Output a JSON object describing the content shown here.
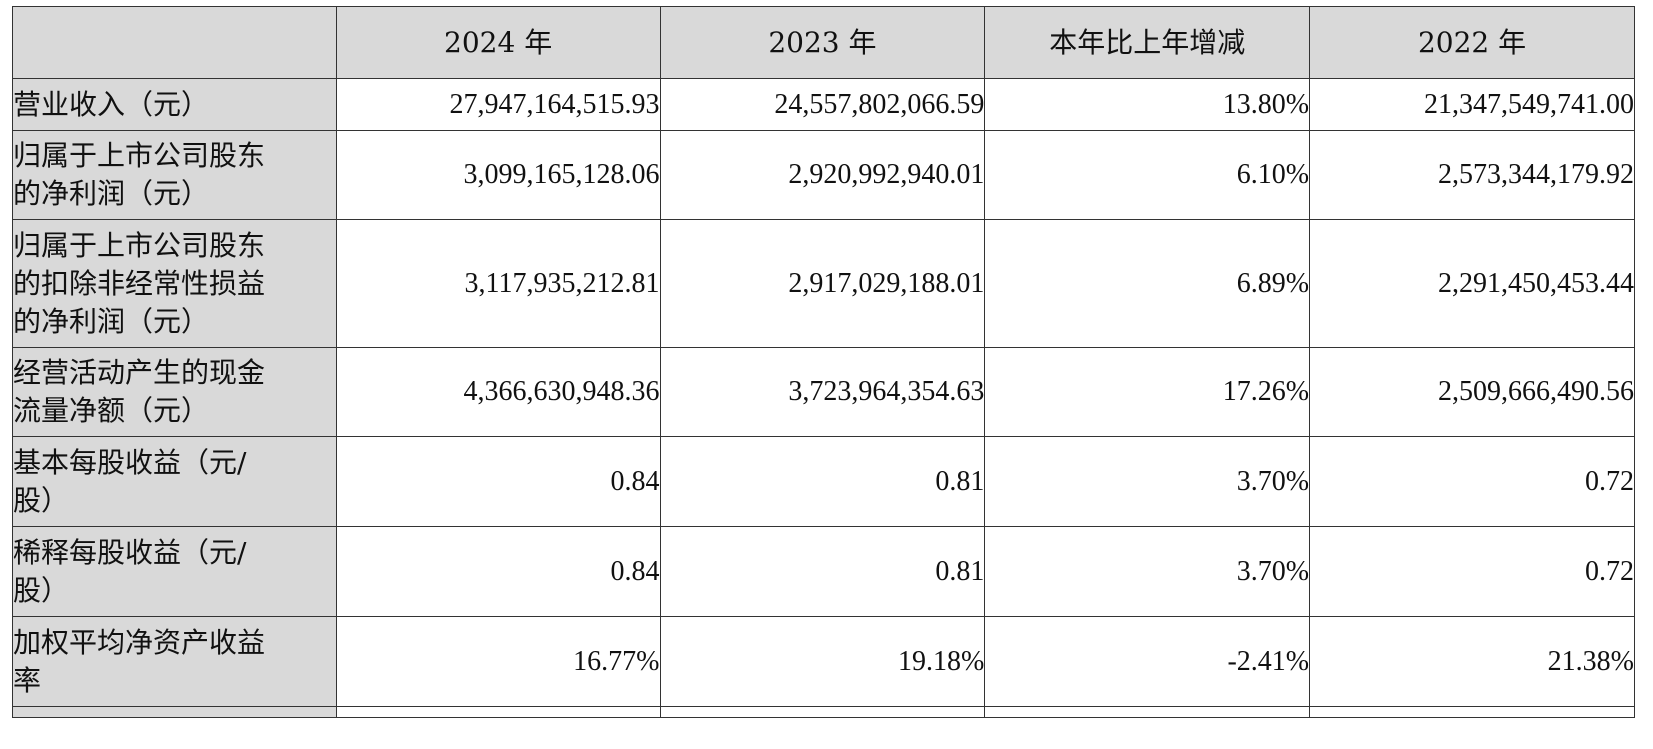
{
  "table": {
    "headers": [
      "",
      "2024 年",
      "2023 年",
      "本年比上年增减",
      "2022 年"
    ],
    "rows": [
      {
        "label": "营业收入（元）",
        "label_lines": [
          "营业收入（元）"
        ],
        "values": [
          "27,947,164,515.93",
          "24,557,802,066.59",
          "13.80%",
          "21,347,549,741.00"
        ]
      },
      {
        "label": "归属于上市公司股东的净利润（元）",
        "label_lines": [
          "归属于上市公司股东",
          "的净利润（元）"
        ],
        "values": [
          "3,099,165,128.06",
          "2,920,992,940.01",
          "6.10%",
          "2,573,344,179.92"
        ]
      },
      {
        "label": "归属于上市公司股东的扣除非经常性损益的净利润（元）",
        "label_lines": [
          "归属于上市公司股东",
          "的扣除非经常性损益",
          "的净利润（元）"
        ],
        "values": [
          "3,117,935,212.81",
          "2,917,029,188.01",
          "6.89%",
          "2,291,450,453.44"
        ]
      },
      {
        "label": "经营活动产生的现金流量净额（元）",
        "label_lines": [
          "经营活动产生的现金",
          "流量净额（元）"
        ],
        "values": [
          "4,366,630,948.36",
          "3,723,964,354.63",
          "17.26%",
          "2,509,666,490.56"
        ]
      },
      {
        "label": "基本每股收益（元/股）",
        "label_lines": [
          "基本每股收益（元/",
          "股）"
        ],
        "values": [
          "0.84",
          "0.81",
          "3.70%",
          "0.72"
        ]
      },
      {
        "label": "稀释每股收益（元/股）",
        "label_lines": [
          "稀释每股收益（元/",
          "股）"
        ],
        "values": [
          "0.84",
          "0.81",
          "3.70%",
          "0.72"
        ]
      },
      {
        "label": "加权平均净资产收益率",
        "label_lines": [
          "加权平均净资产收益",
          "率"
        ],
        "values": [
          "16.77%",
          "19.18%",
          "-2.41%",
          "21.38%"
        ]
      }
    ]
  }
}
